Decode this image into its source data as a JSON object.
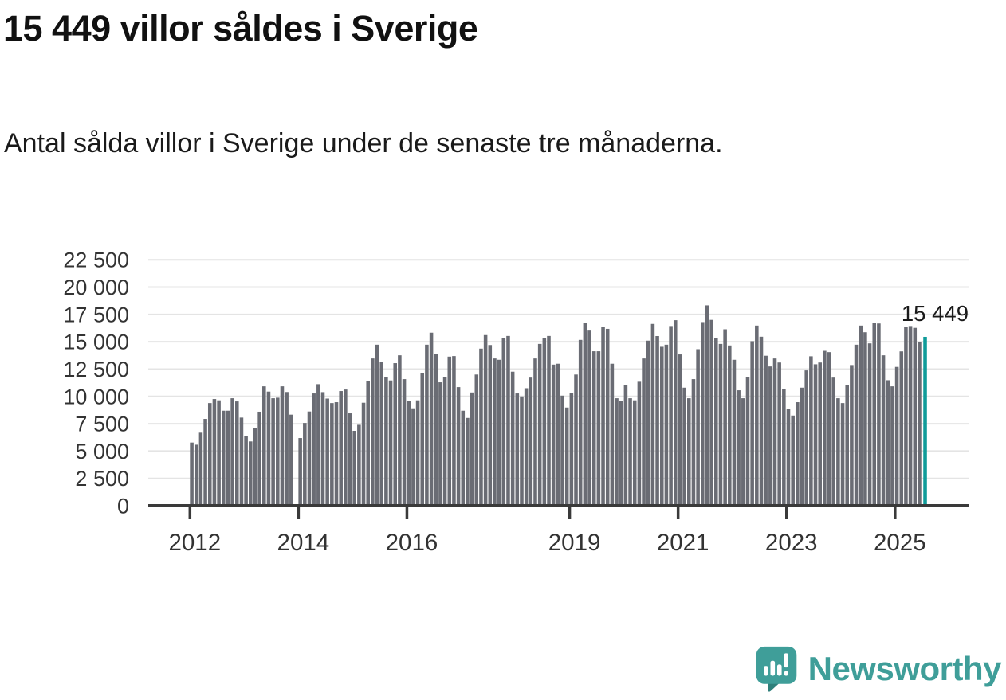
{
  "header": {
    "title": "15 449 villor såldes i Sverige",
    "subtitle": "Antal sålda villor i Sverige under de senaste tre månaderna."
  },
  "chart_data": {
    "type": "bar",
    "title": "15 449 villor såldes i Sverige",
    "subtitle": "Antal sålda villor i Sverige under de senaste tre månaderna.",
    "x_tick_labels": [
      "2012",
      "2014",
      "2016",
      "2019",
      "2021",
      "2023",
      "2025"
    ],
    "x_tick_indices": [
      0,
      24,
      48,
      84,
      108,
      132,
      156
    ],
    "y_tick_values": [
      0,
      2500,
      5000,
      7500,
      10000,
      12500,
      15000,
      17500,
      20000,
      22500
    ],
    "y_tick_labels": [
      "0",
      "2 500",
      "5 000",
      "7 500",
      "10 000",
      "12 500",
      "15 000",
      "17 500",
      "20 000",
      "22 500"
    ],
    "ylim": [
      0,
      23500
    ],
    "grid": true,
    "legend": "none",
    "values": [
      5780,
      5580,
      6680,
      7940,
      9390,
      9760,
      9640,
      8690,
      8690,
      9830,
      9540,
      8060,
      6360,
      5880,
      7090,
      8600,
      10920,
      10440,
      9830,
      9880,
      10920,
      10400,
      8330,
      null,
      6190,
      7570,
      8620,
      10270,
      11120,
      10390,
      9800,
      9390,
      9470,
      10490,
      10630,
      8450,
      6850,
      7400,
      9420,
      11410,
      13470,
      14730,
      13160,
      11770,
      11460,
      13040,
      13760,
      11580,
      9590,
      8910,
      9640,
      12140,
      14730,
      15830,
      13910,
      11290,
      11770,
      13640,
      13690,
      10850,
      8690,
      8030,
      10360,
      12000,
      14370,
      15610,
      14700,
      13470,
      13350,
      15340,
      15530,
      12260,
      10270,
      10000,
      10750,
      11720,
      13470,
      14800,
      15340,
      15530,
      12910,
      12990,
      10070,
      8980,
      10320,
      12000,
      15170,
      16750,
      16020,
      14130,
      14130,
      16380,
      16180,
      12990,
      9830,
      9590,
      11040,
      9830,
      9640,
      11340,
      13470,
      15100,
      16630,
      15520,
      14540,
      14730,
      16440,
      16970,
      13840,
      10800,
      9830,
      11580,
      14320,
      16800,
      18330,
      17000,
      15340,
      14800,
      16140,
      14660,
      13350,
      10560,
      9830,
      11770,
      15050,
      16480,
      15460,
      13720,
      12740,
      13470,
      13100,
      10680,
      8860,
      8250,
      9470,
      10800,
      12380,
      13670,
      12940,
      13100,
      14170,
      14050,
      11720,
      9830,
      9390,
      11040,
      12870,
      14730,
      16480,
      15870,
      14850,
      16750,
      16670,
      13760,
      11480,
      10920,
      12700,
      14120,
      16340,
      16440,
      16270,
      14970,
      15449
    ],
    "highlight_index": 162,
    "highlight_value": 15449,
    "highlight_value_label": "15 449",
    "colors": {
      "bar": "#6a6c74",
      "highlight": "#0f9b99",
      "axis": "#3a3a3a",
      "grid": "#e4e4e4",
      "tick_text": "#333333",
      "annotation_text": "#1a1a1a"
    }
  },
  "logo": {
    "name": "Newsworthy",
    "color": "#3f9e99",
    "icon": "newsworthy-speech-bubble-chart-icon"
  }
}
